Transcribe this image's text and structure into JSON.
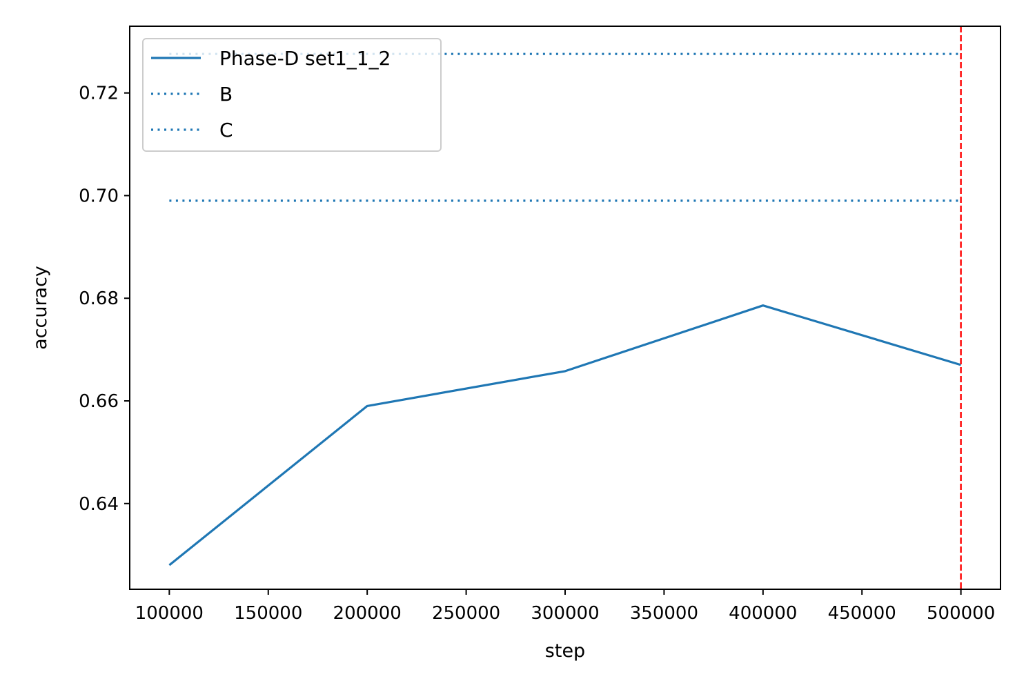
{
  "chart_data": {
    "type": "line",
    "xlabel": "step",
    "ylabel": "accuracy",
    "xlim": [
      80000,
      520000
    ],
    "ylim": [
      0.6233,
      0.733
    ],
    "xticks": [
      100000,
      150000,
      200000,
      250000,
      300000,
      350000,
      400000,
      450000,
      500000
    ],
    "xtick_labels": [
      "100000",
      "150000",
      "200000",
      "250000",
      "300000",
      "350000",
      "400000",
      "450000",
      "500000"
    ],
    "yticks": [
      0.64,
      0.66,
      0.68,
      0.7,
      0.72
    ],
    "ytick_labels": [
      "0.64",
      "0.66",
      "0.68",
      "0.70",
      "0.72"
    ],
    "grid": false,
    "legend_position": "upper-left",
    "series": [
      {
        "name": "Phase-D set1_1_2",
        "style": "solid",
        "color": "#1f77b4",
        "x": [
          100000,
          200000,
          300000,
          400000,
          500000
        ],
        "y": [
          0.628,
          0.659,
          0.6658,
          0.6786,
          0.667
        ]
      },
      {
        "name": "B",
        "style": "dotted",
        "color": "#1f77b4",
        "x": [
          100000,
          500000
        ],
        "y": [
          0.7276,
          0.7276
        ]
      },
      {
        "name": "C",
        "style": "dotted",
        "color": "#1f77b4",
        "x": [
          100000,
          500000
        ],
        "y": [
          0.699,
          0.699
        ]
      }
    ],
    "vlines": [
      {
        "x": 500000,
        "color": "#ff0000",
        "style": "dashed"
      }
    ]
  }
}
